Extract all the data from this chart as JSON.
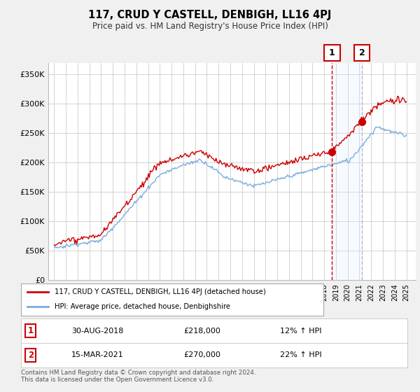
{
  "title": "117, CRUD Y CASTELL, DENBIGH, LL16 4PJ",
  "subtitle": "Price paid vs. HM Land Registry's House Price Index (HPI)",
  "ylabel_ticks": [
    "£0",
    "£50K",
    "£100K",
    "£150K",
    "£200K",
    "£250K",
    "£300K",
    "£350K"
  ],
  "ytick_values": [
    0,
    50000,
    100000,
    150000,
    200000,
    250000,
    300000,
    350000
  ],
  "ylim": [
    0,
    370000
  ],
  "line1_color": "#cc0000",
  "line2_color": "#7aade0",
  "vline1_color": "#cc0000",
  "vline2_color": "#aaaacc",
  "shade_color": "#ddeeff",
  "legend_label1": "117, CRUD Y CASTELL, DENBIGH, LL16 4PJ (detached house)",
  "legend_label2": "HPI: Average price, detached house, Denbighshire",
  "point1_label": "1",
  "point1_date": "30-AUG-2018",
  "point1_price": "£218,000",
  "point1_hpi": "12% ↑ HPI",
  "point1_x": 2018.67,
  "point1_y": 218000,
  "point2_label": "2",
  "point2_date": "15-MAR-2021",
  "point2_price": "£270,000",
  "point2_hpi": "22% ↑ HPI",
  "point2_x": 2021.21,
  "point2_y": 270000,
  "footer": "Contains HM Land Registry data © Crown copyright and database right 2024.\nThis data is licensed under the Open Government Licence v3.0.",
  "bg_color": "#f0f0f0",
  "plot_bg_color": "#ffffff",
  "grid_color": "#cccccc",
  "xlim_left": 1994.5,
  "xlim_right": 2025.8
}
